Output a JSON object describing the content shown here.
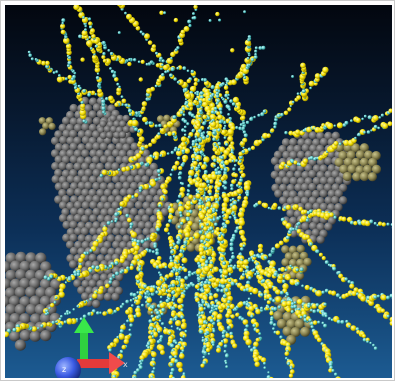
{
  "viewer": {
    "axes": {
      "x_label": "x",
      "z_label": "z"
    },
    "colors": {
      "background_top": "#03070f",
      "background_bottom": "#1c5b92",
      "gray_sphere": "#6d6d6d",
      "olive_sphere": "#8a8450",
      "yellow_atom": "#f4e000",
      "cyan_atom": "#59c8c8",
      "axis_x": "#e33a3a",
      "axis_y": "#2fd13f",
      "axis_z": "#3a5be3"
    }
  }
}
